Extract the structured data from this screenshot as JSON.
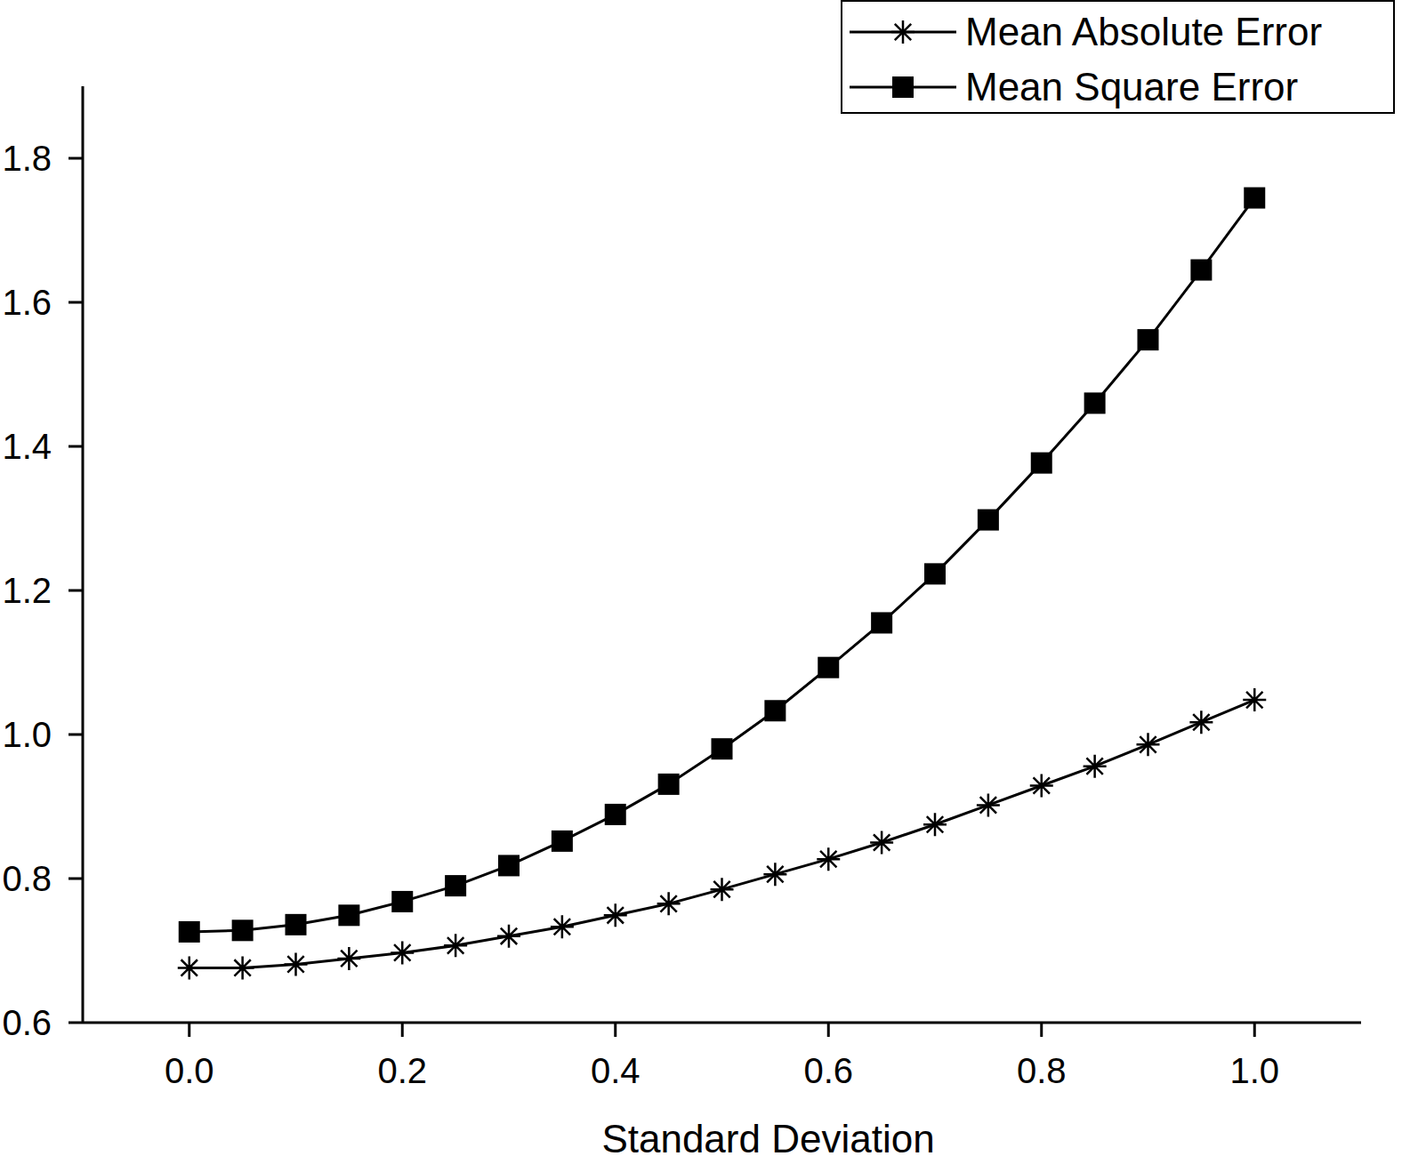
{
  "chart_data": {
    "type": "line",
    "x_label": "Standard Deviation",
    "x": [
      0,
      0.05,
      0.1,
      0.15,
      0.2,
      0.25,
      0.3,
      0.35,
      0.4,
      0.45,
      0.5,
      0.55,
      0.6,
      0.65,
      0.7,
      0.75,
      0.8,
      0.85,
      0.9,
      0.95,
      1.0
    ],
    "series": [
      {
        "name": "Mean Absolute Error",
        "color": "#000000",
        "marker": "star",
        "line_style": "solid",
        "values": [
          0.676,
          0.676,
          0.681,
          0.689,
          0.697,
          0.707,
          0.72,
          0.733,
          0.749,
          0.765,
          0.785,
          0.806,
          0.827,
          0.85,
          0.875,
          0.902,
          0.929,
          0.956,
          0.986,
          1.017,
          1.048
        ]
      },
      {
        "name": "Mean Square Error",
        "color": "#000000",
        "marker": "square",
        "line_style": "solid",
        "values": [
          0.726,
          0.728,
          0.736,
          0.749,
          0.768,
          0.79,
          0.818,
          0.852,
          0.889,
          0.931,
          0.98,
          1.033,
          1.093,
          1.155,
          1.223,
          1.298,
          1.377,
          1.46,
          1.548,
          1.645,
          1.745
        ]
      }
    ],
    "xlim": [
      -0.1,
      1.1
    ],
    "ylim": [
      0.6,
      1.9
    ],
    "xticks": [
      {
        "value": 0,
        "label": "0.0"
      },
      0.2,
      0.4,
      0.6,
      0.8,
      {
        "value": 1,
        "label": "1.0"
      }
    ],
    "yticks": [
      {
        "value": 0.6,
        "label": "0.6"
      },
      {
        "value": 0.8,
        "label": "0.8"
      },
      {
        "value": 1,
        "label": "1.0"
      },
      1.2,
      1.4,
      1.6,
      1.8
    ],
    "grid": false,
    "legend": "upper right"
  }
}
